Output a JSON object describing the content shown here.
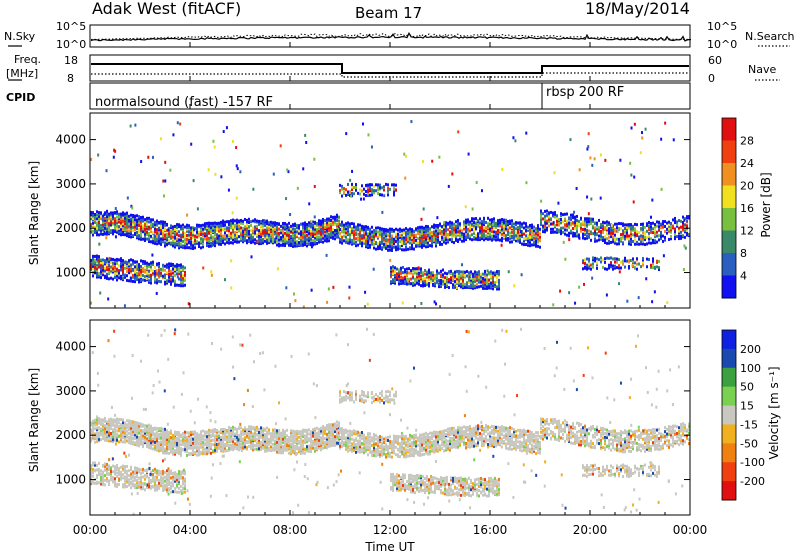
{
  "header": {
    "station": "Adak West (fitACF)",
    "beam": "Beam 17",
    "date": "18/May/2014"
  },
  "panels": {
    "nsky": {
      "label": "N.Sky",
      "ticks": [
        "10^5",
        "10^0"
      ]
    },
    "nsearch": {
      "label": "N.Search",
      "ticks": [
        "10^5",
        "10^0"
      ]
    },
    "freq": {
      "label_top": "Freq.",
      "label_unit": "[MHz]",
      "ticks": [
        "18",
        "8"
      ]
    },
    "nave": {
      "label": "Nave",
      "ticks": [
        "60",
        "0"
      ]
    },
    "cpid": {
      "label": "CPID",
      "modes": [
        "normalsound (fast) -157 RF",
        "rbsp 200 RF"
      ]
    }
  },
  "chart_data": [
    {
      "type": "heatmap",
      "name": "power",
      "ylabel": "Slant Range [km]",
      "xlabel": "",
      "yticks": [
        1000,
        2000,
        3000,
        4000
      ],
      "ylim": [
        200,
        4600
      ],
      "colorbar": {
        "label": "Power [dB]",
        "ticks": [
          "4",
          "8",
          "12",
          "16",
          "20",
          "24",
          "28"
        ]
      }
    },
    {
      "type": "heatmap",
      "name": "velocity",
      "ylabel": "Slant Range [km]",
      "xlabel": "Time UT",
      "yticks": [
        1000,
        2000,
        3000,
        4000
      ],
      "ylim": [
        200,
        4600
      ],
      "colorbar": {
        "label": "Velocity [m s⁻¹]",
        "ticks": [
          "200",
          "100",
          "50",
          "15",
          "-15",
          "-50",
          "-100",
          "-200"
        ]
      }
    }
  ],
  "time_axis": {
    "ticks": [
      "00:00",
      "04:00",
      "08:00",
      "12:00",
      "16:00",
      "20:00",
      "00:00"
    ],
    "label": "Time UT"
  },
  "colors": {
    "power": [
      "#1010f0",
      "#2a5fc0",
      "#3a8a6a",
      "#7ac040",
      "#f0e020",
      "#f09020",
      "#f04010",
      "#e01010"
    ],
    "velocity": [
      "#1020e0",
      "#1a4ab0",
      "#3aa040",
      "#7ad050",
      "#c8c8c0",
      "#f0b020",
      "#f08010",
      "#f04010",
      "#e01010"
    ]
  }
}
